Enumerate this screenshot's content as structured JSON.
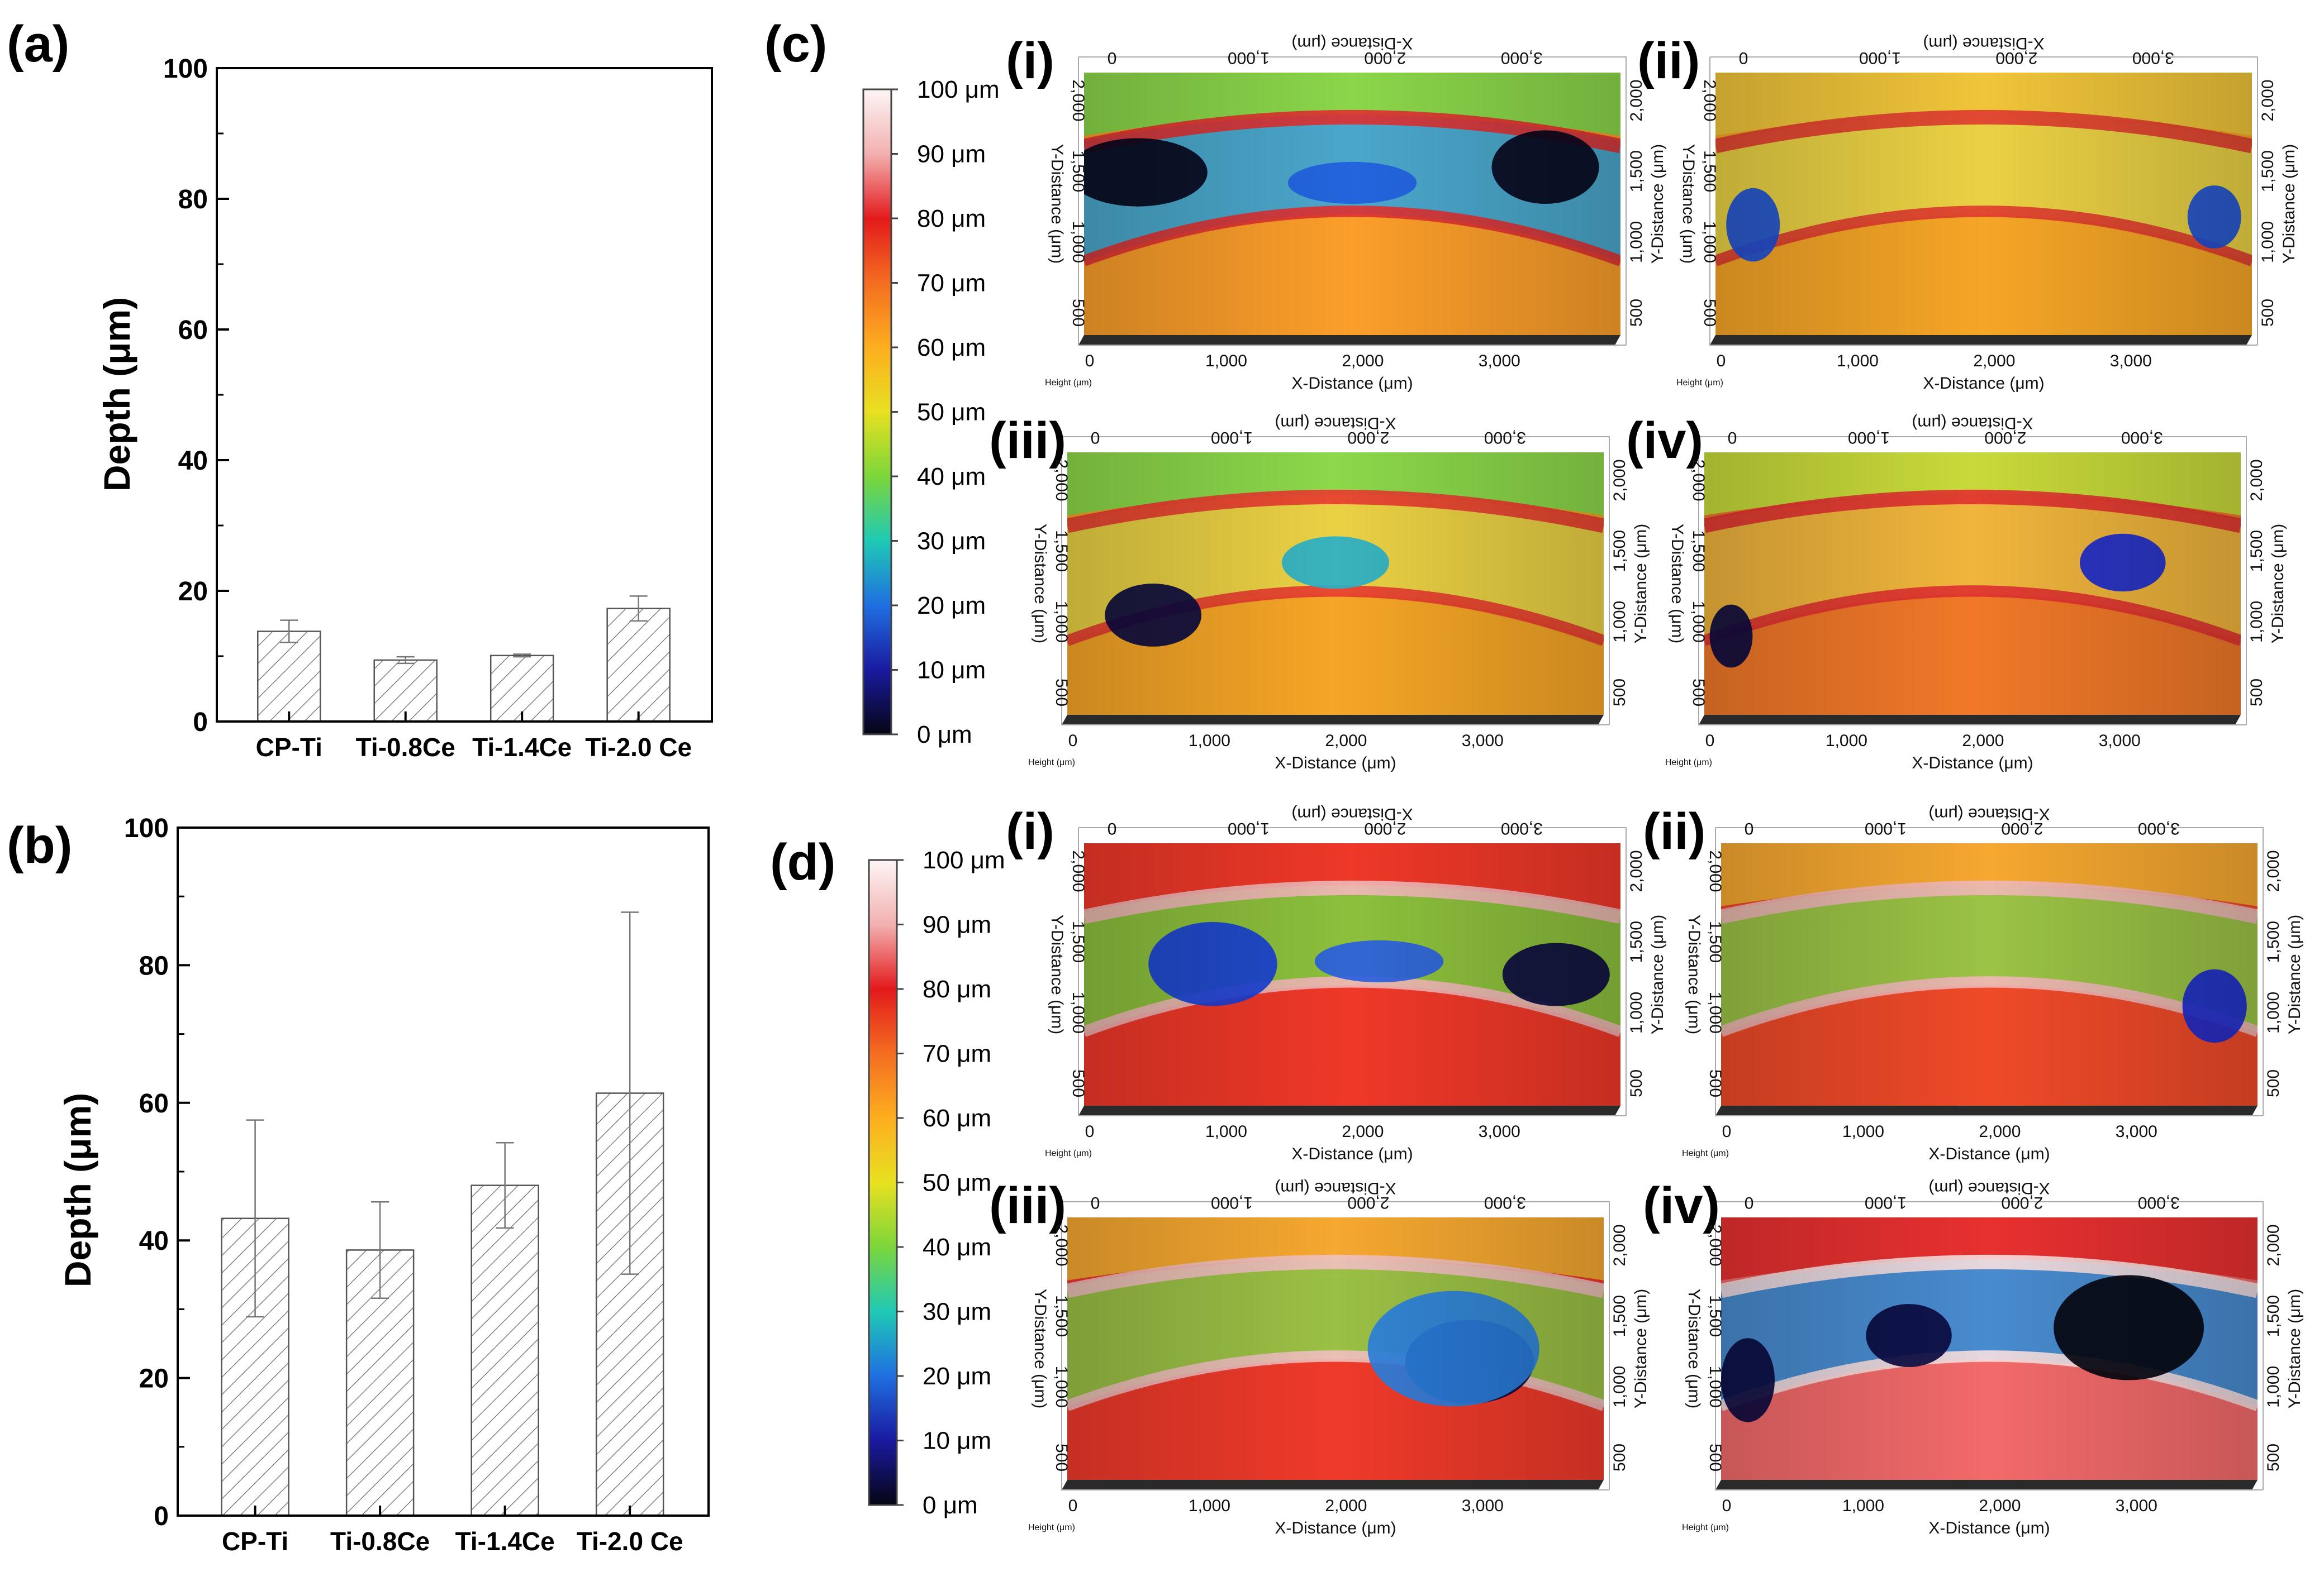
{
  "chart_data": [
    {
      "type": "bar",
      "panel": "(a)",
      "ylabel": "Depth (μm)",
      "ylim": [
        0,
        100
      ],
      "yticks": [
        "0",
        "20",
        "40",
        "60",
        "80",
        "100"
      ],
      "categories": [
        "CP-Ti",
        "Ti-0.8Ce",
        "Ti-1.4Ce",
        "Ti-2.0 Ce"
      ],
      "values": [
        13.8,
        9.4,
        10.1,
        17.3
      ],
      "errors": [
        1.7,
        0.5,
        0.2,
        1.9
      ]
    },
    {
      "type": "bar",
      "panel": "(b)",
      "ylabel": "Depth (μm)",
      "ylim": [
        0,
        100
      ],
      "yticks": [
        "0",
        "20",
        "40",
        "60",
        "80",
        "100"
      ],
      "categories": [
        "CP-Ti",
        "Ti-0.8Ce",
        "Ti-1.4Ce",
        "Ti-2.0 Ce"
      ],
      "values": [
        43.2,
        38.6,
        48.0,
        61.4
      ],
      "errors": [
        14.3,
        7.0,
        6.2,
        26.3
      ]
    }
  ],
  "height_maps": [
    {
      "panel": "(c)",
      "colorbar_labels": [
        "100 μm",
        "90 μm",
        "80 μm",
        "70 μm",
        "60 μm",
        "50 μm",
        "40 μm",
        "30 μm",
        "20 μm",
        "10 μm",
        "0 μm"
      ],
      "colorbar_colors": [
        "#fdf6f6",
        "#f3b0b0",
        "#e31a1c",
        "#f46d21",
        "#fdae1f",
        "#e8e020",
        "#7cd63a",
        "#1fc9b5",
        "#1f6fe0",
        "#1a1aa0",
        "#050514"
      ],
      "maps": [
        {
          "label": "(i)",
          "tone": "c1",
          "x_axis_title": "X-Distance (μm)",
          "y_axis_title": "Y-Distance (μm)",
          "height_title": "Height (μm)",
          "x_ticks": [
            "0",
            "1,000",
            "2,000",
            "3,000"
          ],
          "y_ticks": [
            "500",
            "1,000",
            "1,500",
            "2,000"
          ]
        },
        {
          "label": "(ii)",
          "tone": "c2",
          "x_axis_title": "X-Distance (μm)",
          "y_axis_title": "Y-Distance (μm)",
          "height_title": "Height (μm)",
          "x_ticks": [
            "0",
            "1,000",
            "2,000",
            "3,000"
          ],
          "y_ticks": [
            "500",
            "1,000",
            "1,500",
            "2,000"
          ]
        },
        {
          "label": "(iii)",
          "tone": "c3",
          "x_axis_title": "X-Distance (μm)",
          "y_axis_title": "Y-Distance (μm)",
          "height_title": "Height (μm)",
          "x_ticks": [
            "0",
            "1,000",
            "2,000",
            "3,000"
          ],
          "y_ticks": [
            "500",
            "1,000",
            "1,500",
            "2,000"
          ]
        },
        {
          "label": "(iv)",
          "tone": "c4",
          "x_axis_title": "X-Distance (μm)",
          "y_axis_title": "Y-Distance (μm)",
          "height_title": "Height (μm)",
          "x_ticks": [
            "0",
            "1,000",
            "2,000",
            "3,000"
          ],
          "y_ticks": [
            "500",
            "1,000",
            "1,500",
            "2,000"
          ]
        }
      ]
    },
    {
      "panel": "(d)",
      "colorbar_labels": [
        "100 μm",
        "90 μm",
        "80 μm",
        "70 μm",
        "60 μm",
        "50 μm",
        "40 μm",
        "30 μm",
        "20 μm",
        "10 μm",
        "0 μm"
      ],
      "colorbar_colors": [
        "#fdf6f6",
        "#f3b0b0",
        "#e31a1c",
        "#f46d21",
        "#fdae1f",
        "#e8e020",
        "#7cd63a",
        "#1fc9b5",
        "#1f6fe0",
        "#1a1aa0",
        "#050514"
      ],
      "maps": [
        {
          "label": "(i)",
          "tone": "d1",
          "x_axis_title": "X-Distance (μm)",
          "y_axis_title": "Y-Distance (μm)",
          "height_title": "Height (μm)",
          "x_ticks": [
            "0",
            "1,000",
            "2,000",
            "3,000"
          ],
          "y_ticks": [
            "500",
            "1,000",
            "1,500",
            "2,000"
          ]
        },
        {
          "label": "(ii)",
          "tone": "d2",
          "x_axis_title": "X-Distance (μm)",
          "y_axis_title": "Y-Distance (μm)",
          "height_title": "Height (μm)",
          "x_ticks": [
            "0",
            "1,000",
            "2,000",
            "3,000"
          ],
          "y_ticks": [
            "500",
            "1,000",
            "1,500",
            "2,000"
          ]
        },
        {
          "label": "(iii)",
          "tone": "d3",
          "x_axis_title": "X-Distance (μm)",
          "y_axis_title": "Y-Distance (μm)",
          "height_title": "Height (μm)",
          "x_ticks": [
            "0",
            "1,000",
            "2,000",
            "3,000"
          ],
          "y_ticks": [
            "500",
            "1,000",
            "1,500",
            "2,000"
          ]
        },
        {
          "label": "(iv)",
          "tone": "d4",
          "x_axis_title": "X-Distance (μm)",
          "y_axis_title": "Y-Distance (μm)",
          "height_title": "Height (μm)",
          "x_ticks": [
            "0",
            "1,000",
            "2,000",
            "3,000"
          ],
          "y_ticks": [
            "500",
            "1,000",
            "1,500",
            "2,000"
          ]
        }
      ]
    }
  ]
}
